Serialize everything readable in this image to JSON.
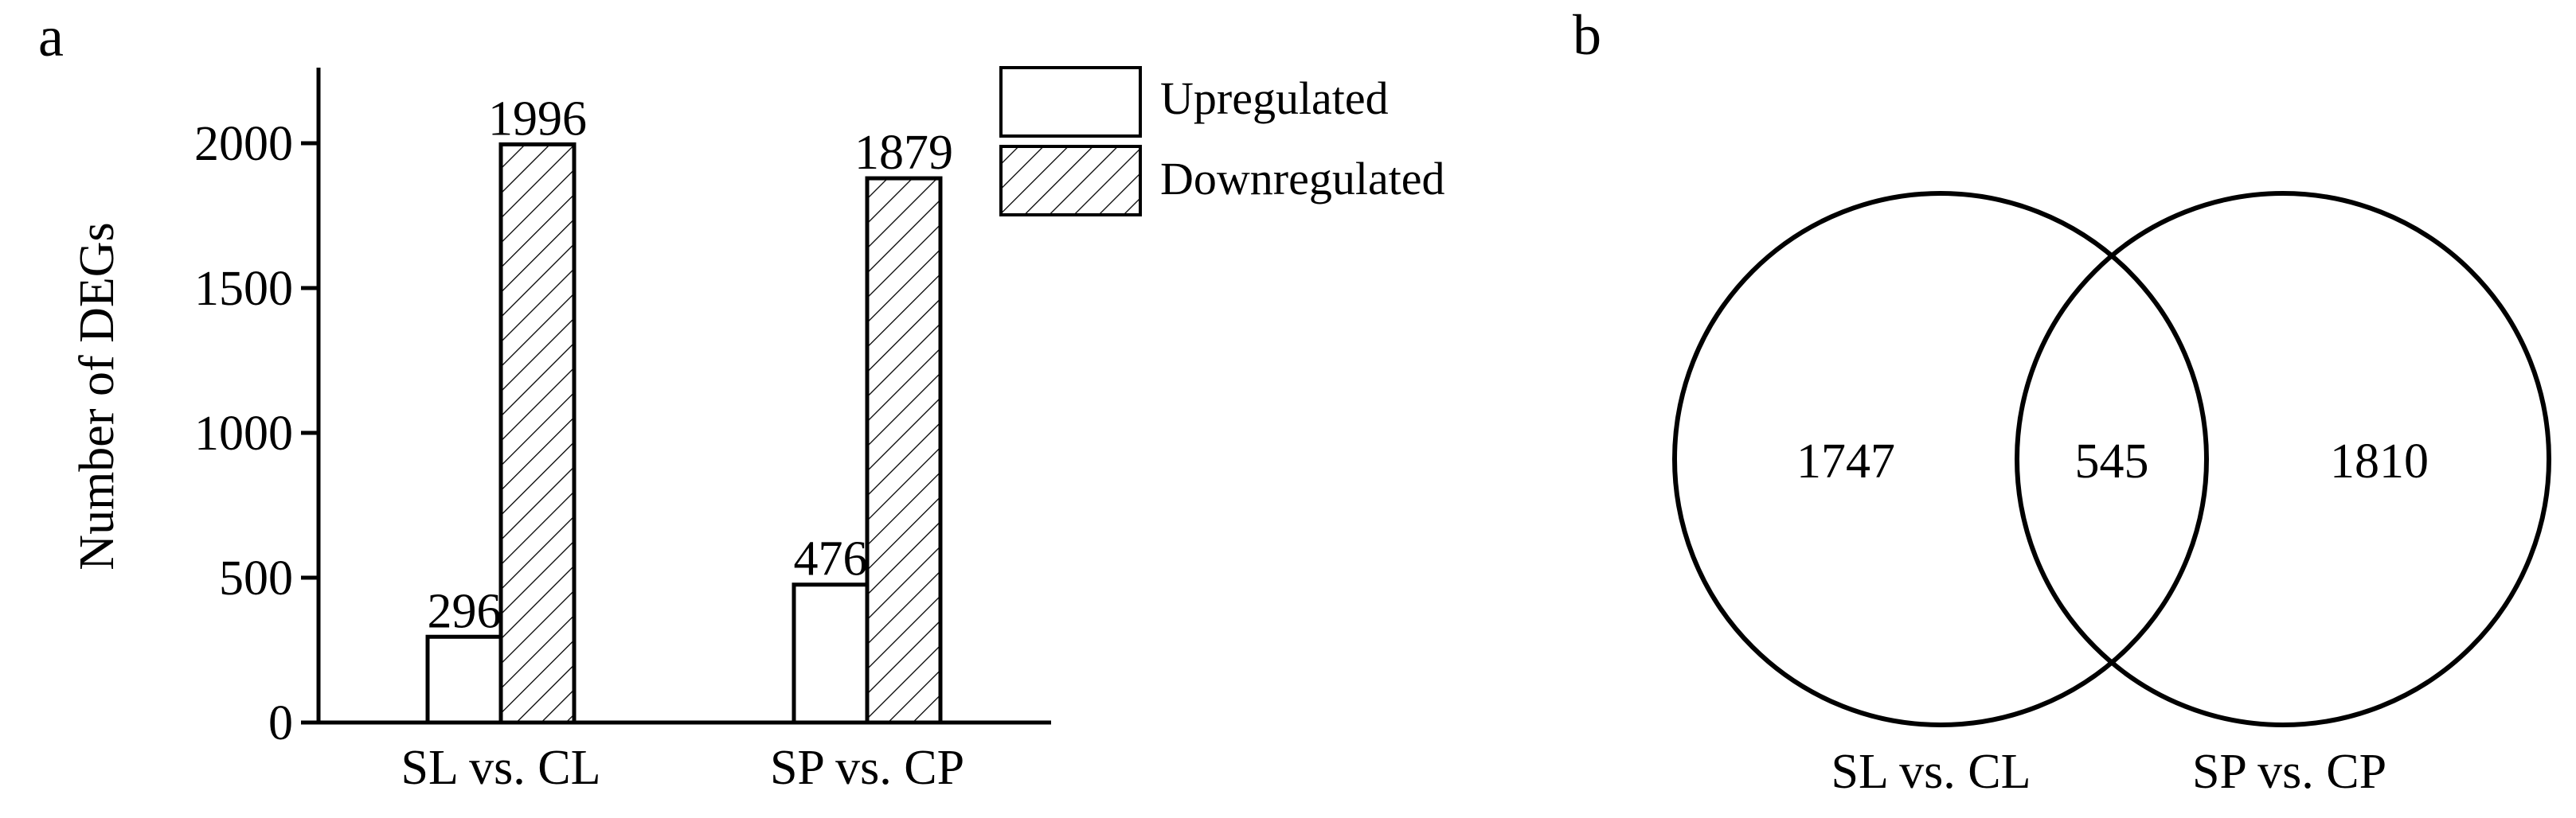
{
  "panels": {
    "a": {
      "label": "a"
    },
    "b": {
      "label": "b"
    }
  },
  "chart_data": [
    {
      "type": "bar",
      "panel": "a",
      "categories": [
        "SL vs. CL",
        "SP vs. CP"
      ],
      "series": [
        {
          "name": "Upregulated",
          "values": [
            296,
            476
          ],
          "fill": "white"
        },
        {
          "name": "Downregulated",
          "values": [
            1996,
            1879
          ],
          "fill": "hatched"
        }
      ],
      "ylabel": "Number of DEGs",
      "ylim": [
        0,
        2250
      ],
      "yticks": [
        0,
        500,
        1000,
        1500,
        2000
      ],
      "legend": "top-right",
      "grid": false
    },
    {
      "type": "venn",
      "panel": "b",
      "sets": [
        "SL vs. CL",
        "SP vs. CP"
      ],
      "only_left": 1747,
      "intersection": 545,
      "only_right": 1810
    }
  ]
}
